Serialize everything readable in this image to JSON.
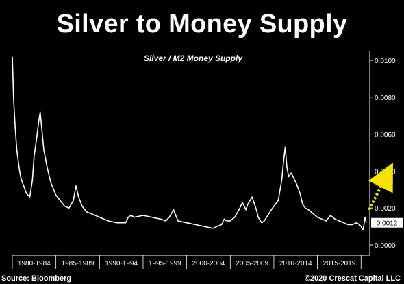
{
  "title": "Silver to Money Supply",
  "footer": {
    "source": "Source: Bloomberg",
    "copyright": "©2020 Crescat Capital LLC"
  },
  "colors": {
    "background": "#000000",
    "line": "#ffffff",
    "arrow": "#f5e400",
    "current_label_bg": "#ffffff"
  },
  "chart_data": {
    "type": "line",
    "title": "Silver / M2 Money Supply",
    "xlabel": "",
    "ylabel": "",
    "grid": false,
    "legend": "none",
    "x_range": [
      1980,
      2021
    ],
    "ylim": [
      0,
      0.0105
    ],
    "y_axis_side": "right",
    "y_ticks": [
      0.0,
      0.002,
      0.004,
      0.006,
      0.008,
      0.01
    ],
    "y_tick_labels": [
      "0.0000",
      "0.0020",
      "0.0040",
      "0.0060",
      "0.0080",
      "0.0100"
    ],
    "x_period_labels": [
      "1980-1984",
      "1985-1989",
      "1990-1994",
      "1995-1999",
      "2000-2004",
      "2005-2009",
      "2010-2014",
      "2015-2019"
    ],
    "current_value_label": "0.0012",
    "series": [
      {
        "x": [
          1980.0,
          1980.15,
          1980.3,
          1980.5,
          1980.8,
          1981.0,
          1981.3,
          1981.6,
          1982.0,
          1982.3,
          1982.5,
          1982.8,
          1983.0,
          1983.2,
          1983.4,
          1983.6,
          1984.0,
          1984.4,
          1985.0,
          1985.5,
          1986.0,
          1986.5,
          1987.0,
          1987.3,
          1987.6,
          1988.0,
          1988.5,
          1989.0,
          1989.5,
          1990.0,
          1990.5,
          1991.0,
          1992.0,
          1993.0,
          1993.3,
          1993.6,
          1994.0,
          1995.0,
          1996.0,
          1997.0,
          1997.6,
          1998.0,
          1998.5,
          1999.0,
          2000.0,
          2001.0,
          2002.0,
          2003.0,
          2004.0,
          2004.3,
          2004.6,
          2005.0,
          2005.5,
          2006.0,
          2006.4,
          2006.8,
          2007.0,
          2007.5,
          2008.0,
          2008.2,
          2008.6,
          2008.9,
          2009.3,
          2009.7,
          2010.0,
          2010.5,
          2010.9,
          2011.1,
          2011.3,
          2011.5,
          2011.7,
          2012.0,
          2012.3,
          2012.6,
          2013.0,
          2013.3,
          2013.6,
          2014.0,
          2014.5,
          2015.0,
          2015.5,
          2016.0,
          2016.5,
          2017.0,
          2018.0,
          2018.5,
          2019.0,
          2019.5,
          2019.8,
          2020.0,
          2020.2,
          2020.3,
          2020.45,
          2020.6
        ],
        "values": [
          0.0102,
          0.0079,
          0.0066,
          0.0052,
          0.0041,
          0.0036,
          0.0032,
          0.0028,
          0.0026,
          0.0035,
          0.0048,
          0.0058,
          0.0066,
          0.0072,
          0.0062,
          0.0052,
          0.0042,
          0.0034,
          0.0027,
          0.0024,
          0.0021,
          0.002,
          0.0024,
          0.0032,
          0.0026,
          0.0021,
          0.0018,
          0.0017,
          0.0016,
          0.0015,
          0.0014,
          0.0013,
          0.0012,
          0.0012,
          0.0015,
          0.0016,
          0.0015,
          0.0016,
          0.0015,
          0.0014,
          0.0013,
          0.0015,
          0.0019,
          0.0013,
          0.0012,
          0.0011,
          0.001,
          0.0009,
          0.0011,
          0.0014,
          0.0013,
          0.0013,
          0.0015,
          0.0019,
          0.0023,
          0.0019,
          0.0022,
          0.0026,
          0.0019,
          0.0015,
          0.0012,
          0.0013,
          0.0016,
          0.0019,
          0.0021,
          0.0024,
          0.0035,
          0.0045,
          0.0053,
          0.0042,
          0.0037,
          0.0039,
          0.0036,
          0.0033,
          0.0028,
          0.0022,
          0.002,
          0.0019,
          0.0017,
          0.0015,
          0.0014,
          0.0013,
          0.0016,
          0.0014,
          0.0012,
          0.0011,
          0.0011,
          0.0012,
          0.0011,
          0.001,
          0.0008,
          0.001,
          0.0015,
          0.0012
        ]
      }
    ],
    "annotation": "dotted arrow pointing up-right from the latest value"
  }
}
